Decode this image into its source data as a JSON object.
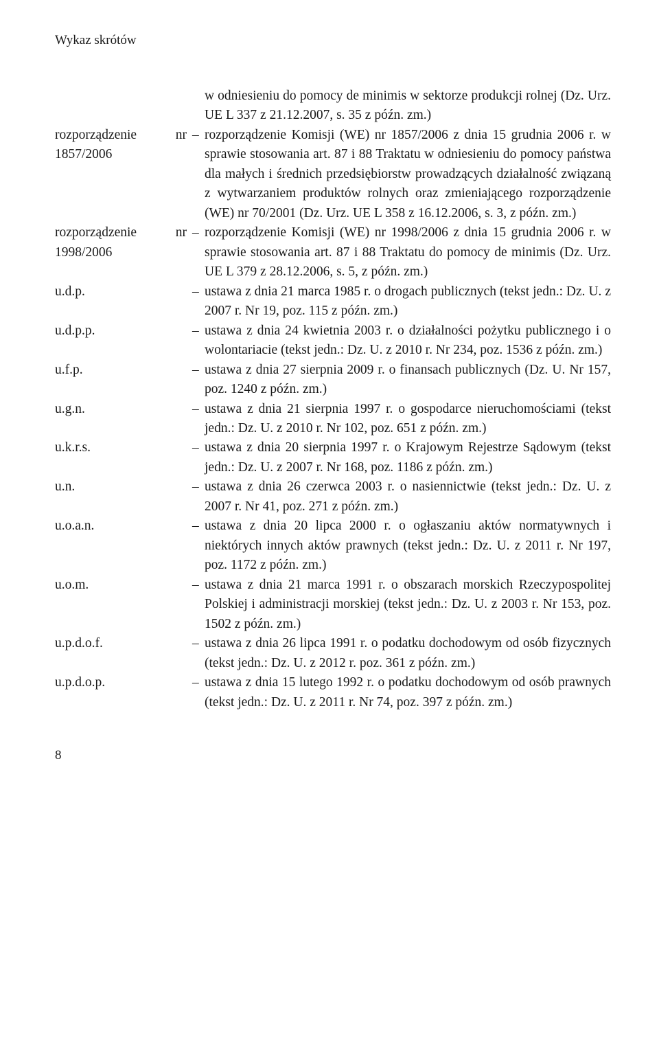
{
  "header": "Wykaz skrótów",
  "page_number": "8",
  "intro": {
    "text": "w odniesieniu do pomocy de minimis w sektorze produkcji rolnej (Dz. Urz. UE L 337 z 21.12.2007, s. 35 z późn. zm.)"
  },
  "entries": [
    {
      "abbr": "rozporządzenie nr 1857/2006",
      "def": "rozporządzenie Komisji (WE) nr 1857/2006 z dnia 15 grudnia 2006 r. w sprawie stosowania art. 87 i 88 Traktatu w odniesieniu do pomocy państwa dla małych i średnich przedsiębiorstw prowadzących działalność związaną z wytwarzaniem produktów rolnych oraz zmieniającego rozporządzenie (WE) nr 70/2001 (Dz. Urz. UE L 358 z 16.12.2006, s. 3, z późn. zm.)"
    },
    {
      "abbr": "rozporządzenie nr 1998/2006",
      "def": "rozporządzenie Komisji (WE) nr 1998/2006 z dnia 15 grudnia 2006 r. w sprawie stosowania art. 87 i 88 Traktatu do pomocy de minimis (Dz. Urz. UE L 379 z 28.12.2006, s. 5, z późn. zm.)"
    },
    {
      "abbr": "u.d.p.",
      "def": "ustawa z dnia 21 marca 1985 r. o drogach publicznych (tekst jedn.: Dz. U. z 2007 r. Nr 19, poz. 115 z późn. zm.)"
    },
    {
      "abbr": "u.d.p.p.",
      "def": "ustawa z dnia 24 kwietnia 2003 r. o działalności pożytku publicznego i o wolontariacie (tekst jedn.: Dz. U. z 2010 r. Nr 234, poz. 1536 z późn. zm.)"
    },
    {
      "abbr": "u.f.p.",
      "def": "ustawa z dnia 27 sierpnia 2009 r. o finansach publicznych (Dz. U. Nr 157, poz. 1240 z późn. zm.)"
    },
    {
      "abbr": "u.g.n.",
      "def": "ustawa z dnia 21 sierpnia 1997 r. o gospodarce nieruchomościami (tekst jedn.: Dz. U. z 2010 r. Nr 102, poz. 651 z późn. zm.)"
    },
    {
      "abbr": "u.k.r.s.",
      "def": "ustawa z dnia 20 sierpnia 1997 r. o Krajowym Rejestrze Sądowym (tekst jedn.: Dz. U. z 2007 r. Nr 168, poz. 1186 z późn. zm.)"
    },
    {
      "abbr": "u.n.",
      "def": "ustawa z dnia 26 czerwca 2003 r. o nasiennictwie (tekst jedn.: Dz. U. z 2007 r. Nr 41, poz. 271 z późn. zm.)"
    },
    {
      "abbr": "u.o.a.n.",
      "def": "ustawa z dnia 20 lipca 2000 r. o ogłaszaniu aktów normatywnych i niektórych innych aktów prawnych (tekst jedn.: Dz. U. z 2011 r. Nr 197, poz. 1172 z późn. zm.)"
    },
    {
      "abbr": "u.o.m.",
      "def": "ustawa z dnia 21 marca 1991 r. o obszarach morskich Rzeczypospolitej Polskiej i administracji morskiej (tekst jedn.: Dz. U. z 2003 r. Nr 153, poz. 1502 z późn. zm.)"
    },
    {
      "abbr": "u.p.d.o.f.",
      "def": "ustawa z dnia 26 lipca 1991 r. o podatku dochodowym od osób fizycznych (tekst jedn.: Dz. U. z 2012 r. poz. 361 z późn. zm.)"
    },
    {
      "abbr": "u.p.d.o.p.",
      "def": "ustawa z dnia 15 lutego 1992 r. o podatku dochodowym od osób prawnych (tekst jedn.: Dz. U. z 2011 r. Nr 74, poz. 397 z późn. zm.)"
    }
  ]
}
